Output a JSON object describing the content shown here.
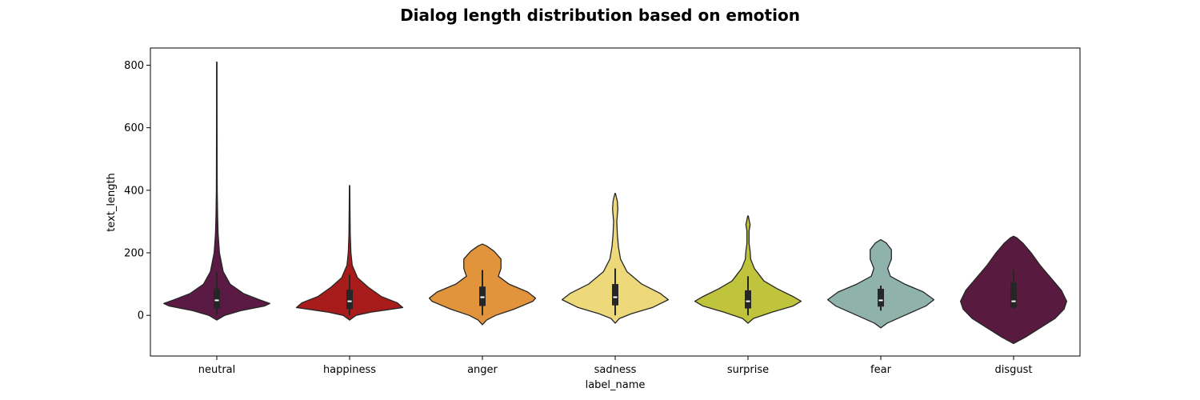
{
  "chart_data": {
    "type": "violin",
    "title": "Dialog length distribution based on emotion",
    "xlabel": "label_name",
    "ylabel": "text_length",
    "ylim": [
      -130,
      855
    ],
    "yticks": [
      0,
      200,
      400,
      600,
      800
    ],
    "categories": [
      "neutral",
      "happiness",
      "anger",
      "sadness",
      "surprise",
      "fear",
      "disgust"
    ],
    "colors": [
      "#5a1a44",
      "#a71b1b",
      "#e2943c",
      "#edd97a",
      "#c0c43c",
      "#8fb3ab",
      "#581a3f"
    ],
    "series": [
      {
        "label": "neutral",
        "min": -15,
        "max": 810,
        "q1": 22,
        "median": 48,
        "q3": 85,
        "whisker_low": 0,
        "whisker_high": 140,
        "profile": [
          [
            -15,
            0
          ],
          [
            0,
            0.15
          ],
          [
            15,
            0.45
          ],
          [
            30,
            0.9
          ],
          [
            38,
            1.0
          ],
          [
            50,
            0.8
          ],
          [
            70,
            0.5
          ],
          [
            100,
            0.25
          ],
          [
            140,
            0.12
          ],
          [
            200,
            0.05
          ],
          [
            260,
            0.025
          ],
          [
            320,
            0.015
          ],
          [
            400,
            0.008
          ],
          [
            600,
            0.005
          ],
          [
            810,
            0.004
          ]
        ]
      },
      {
        "label": "happiness",
        "min": -15,
        "max": 415,
        "q1": 20,
        "median": 45,
        "q3": 82,
        "whisker_low": 0,
        "whisker_high": 130,
        "profile": [
          [
            -15,
            0
          ],
          [
            0,
            0.12
          ],
          [
            10,
            0.4
          ],
          [
            25,
            1.0
          ],
          [
            40,
            0.9
          ],
          [
            60,
            0.6
          ],
          [
            90,
            0.35
          ],
          [
            120,
            0.15
          ],
          [
            160,
            0.05
          ],
          [
            200,
            0.025
          ],
          [
            260,
            0.012
          ],
          [
            350,
            0.007
          ],
          [
            415,
            0.004
          ]
        ]
      },
      {
        "label": "anger",
        "min": -30,
        "max": 228,
        "q1": 30,
        "median": 58,
        "q3": 92,
        "whisker_low": 0,
        "whisker_high": 145,
        "profile": [
          [
            -30,
            0
          ],
          [
            -15,
            0.08
          ],
          [
            0,
            0.25
          ],
          [
            20,
            0.6
          ],
          [
            45,
            0.95
          ],
          [
            55,
            1.0
          ],
          [
            75,
            0.85
          ],
          [
            100,
            0.5
          ],
          [
            125,
            0.3
          ],
          [
            150,
            0.35
          ],
          [
            180,
            0.35
          ],
          [
            205,
            0.22
          ],
          [
            222,
            0.08
          ],
          [
            228,
            0
          ]
        ]
      },
      {
        "label": "sadness",
        "min": -25,
        "max": 390,
        "q1": 32,
        "median": 58,
        "q3": 100,
        "whisker_low": 0,
        "whisker_high": 150,
        "profile": [
          [
            -25,
            0
          ],
          [
            -10,
            0.08
          ],
          [
            5,
            0.3
          ],
          [
            25,
            0.7
          ],
          [
            50,
            1.0
          ],
          [
            70,
            0.85
          ],
          [
            100,
            0.5
          ],
          [
            140,
            0.22
          ],
          [
            180,
            0.1
          ],
          [
            220,
            0.06
          ],
          [
            260,
            0.04
          ],
          [
            300,
            0.03
          ],
          [
            340,
            0.05
          ],
          [
            365,
            0.04
          ],
          [
            390,
            0.005
          ]
        ]
      },
      {
        "label": "surprise",
        "min": -25,
        "max": 318,
        "q1": 22,
        "median": 45,
        "q3": 80,
        "whisker_low": 0,
        "whisker_high": 125,
        "profile": [
          [
            -25,
            0
          ],
          [
            -10,
            0.1
          ],
          [
            10,
            0.45
          ],
          [
            30,
            0.85
          ],
          [
            45,
            1.0
          ],
          [
            60,
            0.85
          ],
          [
            85,
            0.55
          ],
          [
            110,
            0.3
          ],
          [
            150,
            0.12
          ],
          [
            180,
            0.05
          ],
          [
            205,
            0.04
          ],
          [
            230,
            0.02
          ],
          [
            270,
            0.02
          ],
          [
            290,
            0.04
          ],
          [
            318,
            0.005
          ]
        ]
      },
      {
        "label": "fear",
        "min": -40,
        "max": 242,
        "q1": 28,
        "median": 48,
        "q3": 85,
        "whisker_low": 15,
        "whisker_high": 95,
        "profile": [
          [
            -40,
            0
          ],
          [
            -25,
            0.12
          ],
          [
            0,
            0.45
          ],
          [
            30,
            0.85
          ],
          [
            50,
            1.0
          ],
          [
            75,
            0.8
          ],
          [
            100,
            0.45
          ],
          [
            125,
            0.18
          ],
          [
            150,
            0.13
          ],
          [
            180,
            0.2
          ],
          [
            210,
            0.2
          ],
          [
            232,
            0.1
          ],
          [
            242,
            0
          ]
        ]
      },
      {
        "label": "disgust",
        "min": -90,
        "max": 253,
        "q1": 25,
        "median": 45,
        "q3": 105,
        "whisker_low": 20,
        "whisker_high": 145,
        "profile": [
          [
            -90,
            0
          ],
          [
            -70,
            0.22
          ],
          [
            -40,
            0.5
          ],
          [
            -10,
            0.78
          ],
          [
            20,
            0.95
          ],
          [
            45,
            1.0
          ],
          [
            80,
            0.9
          ],
          [
            120,
            0.7
          ],
          [
            160,
            0.5
          ],
          [
            200,
            0.33
          ],
          [
            230,
            0.18
          ],
          [
            248,
            0.06
          ],
          [
            253,
            0
          ]
        ]
      }
    ]
  }
}
